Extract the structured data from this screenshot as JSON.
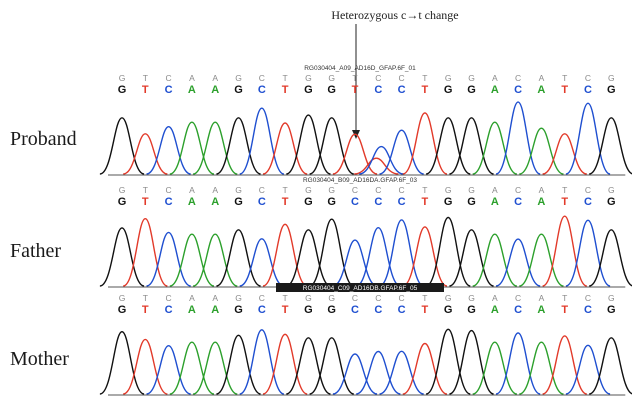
{
  "annotation": {
    "text": "Heterozygous c→t change"
  },
  "colors": {
    "A": "#2ca02c",
    "C": "#1f4fd0",
    "G": "#111111",
    "T": "#e23a2a",
    "ref": "#8a8a8a",
    "run_id_bg": "#1a1a1a",
    "baseline": "#555555"
  },
  "panels": [
    {
      "label": "Proband",
      "run_id": "RG030404_A09_AD16D_GFAP.6F_01",
      "run_id_highlight": false,
      "reference": [
        "G",
        "T",
        "C",
        "A",
        "A",
        "G",
        "C",
        "T",
        "G",
        "G",
        "T",
        "C",
        "C",
        "T",
        "G",
        "G",
        "A",
        "C",
        "A",
        "T",
        "C",
        "G"
      ],
      "calls": [
        "G",
        "T",
        "C",
        "A",
        "A",
        "G",
        "C",
        "T",
        "G",
        "G",
        "T",
        "C",
        "C",
        "T",
        "G",
        "G",
        "A",
        "C",
        "A",
        "T",
        "C",
        "G"
      ],
      "heterozygous_position": 11
    },
    {
      "label": "Father",
      "run_id": "RG030404_B09_AD16DA.GFAP.6F_03",
      "run_id_highlight": false,
      "reference": [
        "G",
        "T",
        "C",
        "A",
        "A",
        "G",
        "C",
        "T",
        "G",
        "G",
        "C",
        "C",
        "C",
        "T",
        "G",
        "G",
        "A",
        "C",
        "A",
        "T",
        "C",
        "G"
      ],
      "calls": [
        "G",
        "T",
        "C",
        "A",
        "A",
        "G",
        "C",
        "T",
        "G",
        "G",
        "C",
        "C",
        "C",
        "T",
        "G",
        "G",
        "A",
        "C",
        "A",
        "T",
        "C",
        "G"
      ],
      "heterozygous_position": null
    },
    {
      "label": "Mother",
      "run_id": "RG030404_C09_AD16DB.GFAP.6F_05",
      "run_id_highlight": true,
      "reference": [
        "G",
        "T",
        "C",
        "A",
        "A",
        "G",
        "C",
        "T",
        "G",
        "G",
        "C",
        "C",
        "C",
        "T",
        "G",
        "G",
        "A",
        "C",
        "A",
        "T",
        "C",
        "G"
      ],
      "calls": [
        "G",
        "T",
        "C",
        "A",
        "A",
        "G",
        "C",
        "T",
        "G",
        "G",
        "C",
        "C",
        "C",
        "T",
        "G",
        "G",
        "A",
        "C",
        "A",
        "T",
        "C",
        "G"
      ],
      "heterozygous_position": null
    }
  ]
}
